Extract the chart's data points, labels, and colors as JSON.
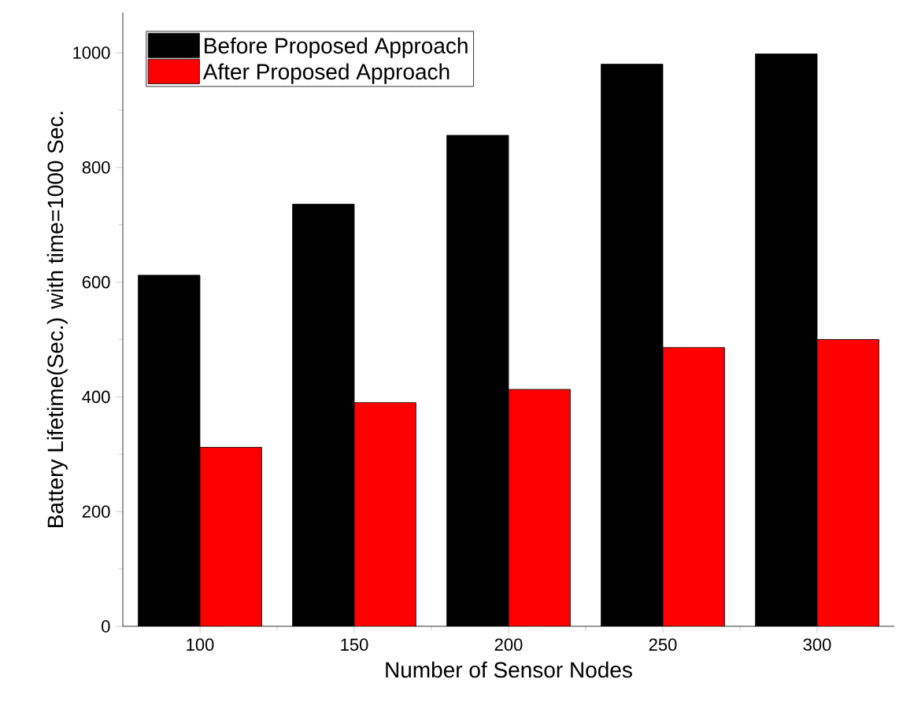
{
  "chart_data": {
    "type": "bar",
    "xlabel": "Number of Sensor Nodes",
    "ylabel": "Battery Lifetime(Sec.) with time=1000 Sec.",
    "categories": [
      "100",
      "150",
      "200",
      "250",
      "300"
    ],
    "series": [
      {
        "name": "Before Proposed Approach",
        "color": "#000000",
        "values": [
          612,
          736,
          856,
          980,
          998
        ]
      },
      {
        "name": "After Proposed Approach",
        "color": "#ff0000",
        "values": [
          312,
          390,
          413,
          486,
          500
        ]
      }
    ],
    "ylim": [
      0,
      1070
    ],
    "yticks": [
      0,
      200,
      400,
      600,
      800,
      1000
    ],
    "grid": false,
    "legend": "top left"
  }
}
